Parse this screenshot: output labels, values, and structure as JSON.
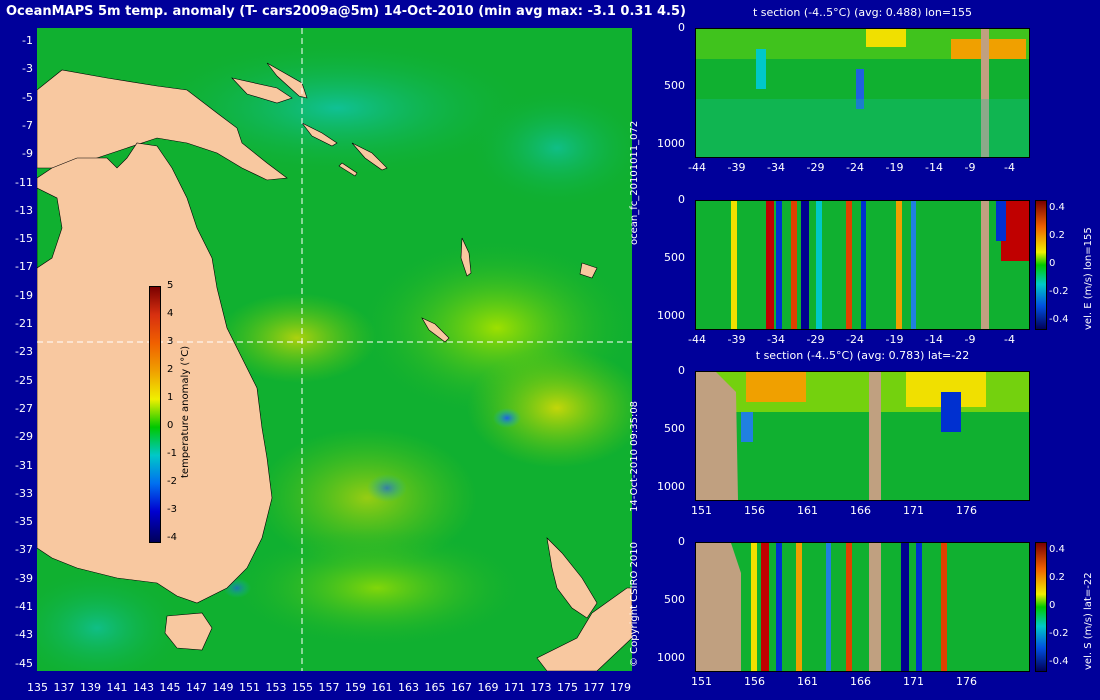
{
  "title": "OceanMAPS 5m temp. anomaly (T- cars2009a@5m) 14-Oct-2010 (min avg max: -3.1 0.31 4.5)",
  "map": {
    "lat_labels": [
      "-1",
      "-3",
      "-5",
      "-7",
      "-9",
      "-11",
      "-13",
      "-15",
      "-17",
      "-19",
      "-21",
      "-23",
      "-25",
      "-27",
      "-29",
      "-31",
      "-33",
      "-35",
      "-37",
      "-39",
      "-41",
      "-43",
      "-45"
    ],
    "lon_labels": [
      "135",
      "137",
      "139",
      "141",
      "143",
      "145",
      "147",
      "149",
      "151",
      "153",
      "155",
      "157",
      "159",
      "161",
      "163",
      "165",
      "167",
      "169",
      "171",
      "173",
      "175",
      "177",
      "179"
    ],
    "crosshair": {
      "lon": 155,
      "lat": -22
    }
  },
  "colorbar": {
    "label": "temperature anomaly (°C)",
    "ticks": [
      "5",
      "4",
      "3",
      "2",
      "1",
      "0",
      "-1",
      "-2",
      "-3",
      "-4"
    ]
  },
  "side_texts": {
    "run_id": "ocean_fc_20101011_072",
    "timestamp": "14-Oct-2010 09:35:08",
    "copyright": "© Copyright CSIRO 2010"
  },
  "panels": {
    "p1": {
      "title": "t section (-4..5°C) (avg: 0.488) lon=155",
      "y_ticks": [
        "0",
        "500",
        "1000"
      ],
      "x_ticks": [
        "-44",
        "-39",
        "-34",
        "-29",
        "-24",
        "-19",
        "-14",
        "-9",
        "-4"
      ]
    },
    "p2": {
      "title": "",
      "y_ticks": [
        "0",
        "500",
        "1000"
      ],
      "x_ticks": [
        "-44",
        "-39",
        "-34",
        "-29",
        "-24",
        "-19",
        "-14",
        "-9",
        "-4"
      ],
      "cbar_label": "vel. E (m/s) lon=155",
      "cbar_ticks": [
        "0.4",
        "0.2",
        "0",
        "-0.2",
        "-0.4"
      ]
    },
    "p3": {
      "title": "t section (-4..5°C) (avg: 0.783) lat=-22",
      "y_ticks": [
        "0",
        "500",
        "1000"
      ],
      "x_ticks": [
        "151",
        "156",
        "161",
        "166",
        "171",
        "176"
      ]
    },
    "p4": {
      "title": "",
      "y_ticks": [
        "0",
        "500",
        "1000"
      ],
      "x_ticks": [
        "151",
        "156",
        "161",
        "166",
        "171",
        "176"
      ],
      "cbar_label": "vel. S (m/s) lat=-22",
      "cbar_ticks": [
        "0.4",
        "0.2",
        "0",
        "-0.2",
        "-0.4"
      ]
    }
  },
  "colors": {
    "background": "#00009a",
    "ocean": "#10b030",
    "land": "#f8c8a0",
    "section_land": "#c0a080"
  }
}
